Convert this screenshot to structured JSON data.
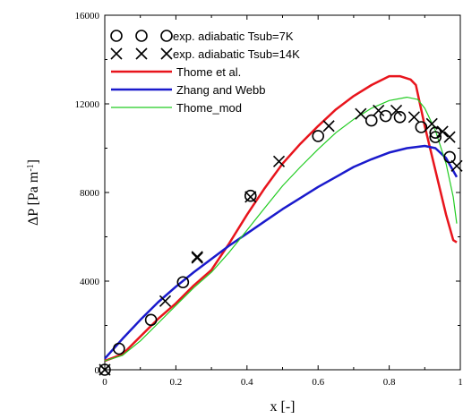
{
  "chart_data": {
    "type": "scatter",
    "xlabel": "x [-]",
    "ylabel": {
      "main": "ΔP [Pa m",
      "sup": "-1",
      "end": "]"
    },
    "xlim": [
      0,
      1
    ],
    "ylim": [
      0,
      16000
    ],
    "x_ticks": [
      0,
      0.2,
      0.4,
      0.6,
      0.8,
      1
    ],
    "x_tick_labels": [
      "0",
      "0.2",
      "0.4",
      "0.6",
      "0.8",
      "1"
    ],
    "y_ticks": [
      0,
      4000,
      8000,
      12000,
      16000
    ],
    "y_tick_labels": [
      "0",
      "4000",
      "8000",
      "12000",
      "16000"
    ],
    "grid": false,
    "legend_position": "top-left",
    "series": [
      {
        "name": "exp. adiabatic Tsub=7K",
        "kind": "marker",
        "marker": "circle",
        "color": "#000000",
        "points": [
          [
            0.0,
            0
          ],
          [
            0.04,
            950
          ],
          [
            0.13,
            2250
          ],
          [
            0.22,
            3950
          ],
          [
            0.41,
            7850
          ],
          [
            0.6,
            10550
          ],
          [
            0.75,
            11250
          ],
          [
            0.79,
            11450
          ],
          [
            0.83,
            11400
          ],
          [
            0.89,
            10950
          ],
          [
            0.93,
            10700
          ],
          [
            0.93,
            10500
          ],
          [
            0.97,
            9600
          ]
        ]
      },
      {
        "name": "exp. adiabatic Tsub=14K",
        "kind": "marker",
        "marker": "cross",
        "color": "#000000",
        "points": [
          [
            0.0,
            0
          ],
          [
            0.17,
            3100
          ],
          [
            0.26,
            5050
          ],
          [
            0.26,
            5100
          ],
          [
            0.41,
            7800
          ],
          [
            0.49,
            9400
          ],
          [
            0.63,
            11000
          ],
          [
            0.72,
            11550
          ],
          [
            0.77,
            11700
          ],
          [
            0.82,
            11700
          ],
          [
            0.87,
            11400
          ],
          [
            0.92,
            11100
          ],
          [
            0.95,
            10750
          ],
          [
            0.97,
            10500
          ],
          [
            0.99,
            9200
          ]
        ]
      },
      {
        "name": "Thome et al.",
        "kind": "line",
        "color": "#e8141c",
        "stroke_width": 2.5,
        "points": [
          [
            0.0,
            400
          ],
          [
            0.05,
            700
          ],
          [
            0.1,
            1500
          ],
          [
            0.15,
            2300
          ],
          [
            0.2,
            3000
          ],
          [
            0.25,
            3800
          ],
          [
            0.3,
            4500
          ],
          [
            0.35,
            5700
          ],
          [
            0.4,
            7000
          ],
          [
            0.45,
            8200
          ],
          [
            0.5,
            9300
          ],
          [
            0.55,
            10200
          ],
          [
            0.6,
            11000
          ],
          [
            0.65,
            11750
          ],
          [
            0.7,
            12350
          ],
          [
            0.75,
            12850
          ],
          [
            0.8,
            13250
          ],
          [
            0.83,
            13250
          ],
          [
            0.86,
            13100
          ],
          [
            0.875,
            12850
          ],
          [
            0.9,
            11000
          ],
          [
            0.93,
            9000
          ],
          [
            0.96,
            7000
          ],
          [
            0.98,
            5850
          ],
          [
            0.99,
            5750
          ]
        ]
      },
      {
        "name": "Zhang and Webb",
        "kind": "line",
        "color": "#1a1acc",
        "stroke_width": 2.5,
        "points": [
          [
            0.0,
            500
          ],
          [
            0.05,
            1400
          ],
          [
            0.1,
            2250
          ],
          [
            0.15,
            3050
          ],
          [
            0.2,
            3750
          ],
          [
            0.25,
            4400
          ],
          [
            0.3,
            5000
          ],
          [
            0.35,
            5600
          ],
          [
            0.4,
            6150
          ],
          [
            0.45,
            6700
          ],
          [
            0.5,
            7250
          ],
          [
            0.55,
            7750
          ],
          [
            0.6,
            8250
          ],
          [
            0.65,
            8700
          ],
          [
            0.7,
            9150
          ],
          [
            0.75,
            9500
          ],
          [
            0.8,
            9800
          ],
          [
            0.85,
            10000
          ],
          [
            0.9,
            10100
          ],
          [
            0.93,
            10000
          ],
          [
            0.96,
            9550
          ],
          [
            0.99,
            8700
          ]
        ]
      },
      {
        "name": "Thome_mod",
        "kind": "line",
        "color": "#22cc22",
        "stroke_width": 1.2,
        "points": [
          [
            0.0,
            400
          ],
          [
            0.05,
            650
          ],
          [
            0.1,
            1300
          ],
          [
            0.15,
            2100
          ],
          [
            0.2,
            2900
          ],
          [
            0.25,
            3700
          ],
          [
            0.3,
            4400
          ],
          [
            0.35,
            5300
          ],
          [
            0.4,
            6300
          ],
          [
            0.45,
            7300
          ],
          [
            0.5,
            8300
          ],
          [
            0.55,
            9150
          ],
          [
            0.6,
            9950
          ],
          [
            0.65,
            10700
          ],
          [
            0.7,
            11300
          ],
          [
            0.75,
            11800
          ],
          [
            0.8,
            12150
          ],
          [
            0.85,
            12300
          ],
          [
            0.88,
            12200
          ],
          [
            0.9,
            11800
          ],
          [
            0.93,
            10800
          ],
          [
            0.96,
            9300
          ],
          [
            0.98,
            7800
          ],
          [
            0.99,
            6600
          ]
        ]
      }
    ]
  }
}
